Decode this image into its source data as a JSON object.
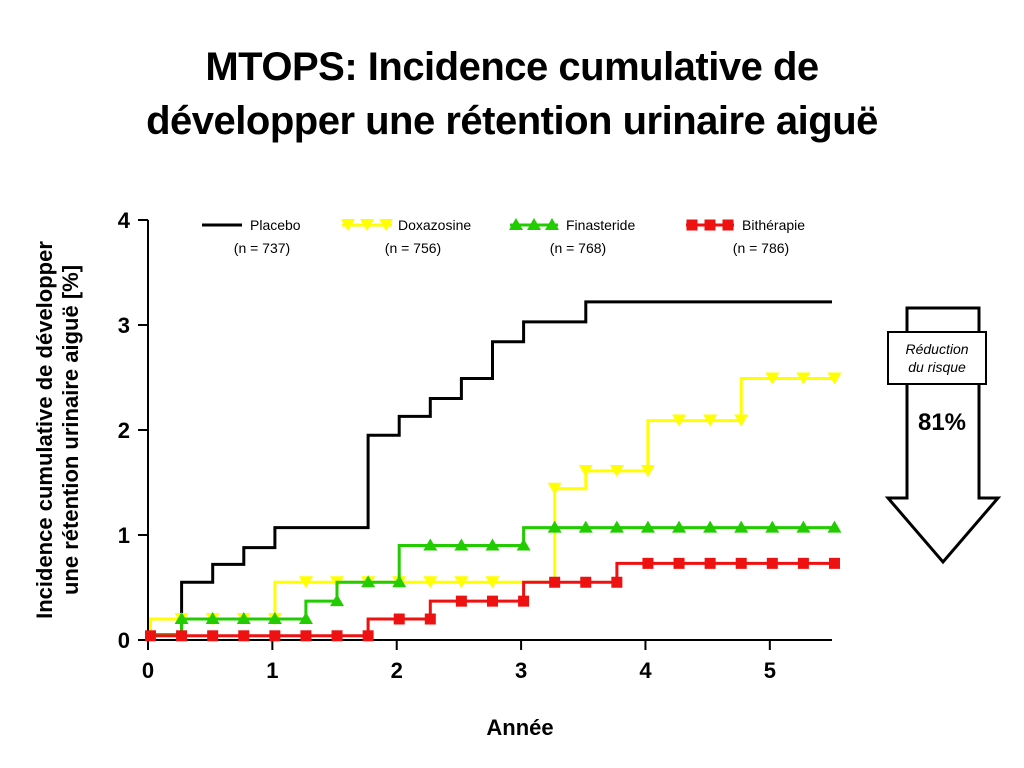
{
  "title": {
    "line1": "MTOPS: Incidence cumulative  de",
    "line2": "développer une rétention urinaire aiguë"
  },
  "callout": {
    "label_line1": "Réduction",
    "label_line2": "du risque",
    "value": "81%"
  },
  "chart_data": {
    "type": "line",
    "step": true,
    "xlabel": "Année",
    "ylabel_line1": "Incidence cumulative de développer",
    "ylabel_line2": "une rétention urinaire aiguë [%]",
    "xlim": [
      0,
      5.5
    ],
    "ylim": [
      0,
      4
    ],
    "xticks": [
      "0",
      "1",
      "2",
      "3",
      "4",
      "5"
    ],
    "yticks": [
      "0",
      "1",
      "2",
      "3",
      "4"
    ],
    "legend_position": "top",
    "series": [
      {
        "name": "Placebo",
        "n_label": "(n = 737)",
        "color": "#000000",
        "marker": "none",
        "points": [
          [
            0,
            0.05
          ],
          [
            0.27,
            0.05
          ],
          [
            0.27,
            0.55
          ],
          [
            0.52,
            0.55
          ],
          [
            0.52,
            0.72
          ],
          [
            0.77,
            0.72
          ],
          [
            0.77,
            0.88
          ],
          [
            1.02,
            0.88
          ],
          [
            1.02,
            1.07
          ],
          [
            1.77,
            1.07
          ],
          [
            1.77,
            1.95
          ],
          [
            2.02,
            1.95
          ],
          [
            2.02,
            2.13
          ],
          [
            2.27,
            2.13
          ],
          [
            2.27,
            2.3
          ],
          [
            2.52,
            2.3
          ],
          [
            2.52,
            2.49
          ],
          [
            2.77,
            2.49
          ],
          [
            2.77,
            2.84
          ],
          [
            3.02,
            2.84
          ],
          [
            3.02,
            3.03
          ],
          [
            3.52,
            3.03
          ],
          [
            3.52,
            3.22
          ],
          [
            5.5,
            3.22
          ]
        ],
        "markers": []
      },
      {
        "name": "Doxazosine",
        "n_label": "(n = 756)",
        "color": "#ffff00",
        "marker": "triangle-down",
        "points": [
          [
            0,
            0.05
          ],
          [
            0.02,
            0.05
          ],
          [
            0.02,
            0.2
          ],
          [
            1.02,
            0.2
          ],
          [
            1.02,
            0.55
          ],
          [
            2.77,
            0.55
          ],
          [
            2.77,
            0.55
          ],
          [
            3.27,
            0.55
          ],
          [
            3.27,
            1.44
          ],
          [
            3.52,
            1.44
          ],
          [
            3.52,
            1.61
          ],
          [
            4.02,
            1.61
          ],
          [
            4.02,
            2.09
          ],
          [
            4.77,
            2.09
          ],
          [
            4.77,
            2.49
          ],
          [
            5.55,
            2.49
          ]
        ],
        "markers": [
          [
            0.27,
            0.2
          ],
          [
            0.52,
            0.2
          ],
          [
            0.77,
            0.2
          ],
          [
            1.02,
            0.2
          ],
          [
            1.27,
            0.55
          ],
          [
            1.52,
            0.55
          ],
          [
            1.77,
            0.55
          ],
          [
            2.02,
            0.55
          ],
          [
            2.27,
            0.55
          ],
          [
            2.52,
            0.55
          ],
          [
            2.77,
            0.55
          ],
          [
            3.27,
            1.44
          ],
          [
            3.52,
            1.61
          ],
          [
            3.77,
            1.61
          ],
          [
            4.02,
            1.61
          ],
          [
            4.27,
            2.09
          ],
          [
            4.52,
            2.09
          ],
          [
            4.77,
            2.09
          ],
          [
            5.02,
            2.49
          ],
          [
            5.27,
            2.49
          ],
          [
            5.52,
            2.49
          ]
        ]
      },
      {
        "name": "Finasteride",
        "n_label": "(n = 768)",
        "color": "#22cc00",
        "marker": "triangle-up",
        "points": [
          [
            0,
            0.05
          ],
          [
            0.27,
            0.05
          ],
          [
            0.27,
            0.2
          ],
          [
            1.27,
            0.2
          ],
          [
            1.27,
            0.37
          ],
          [
            1.52,
            0.37
          ],
          [
            1.52,
            0.55
          ],
          [
            2.02,
            0.55
          ],
          [
            2.02,
            0.9
          ],
          [
            3.02,
            0.9
          ],
          [
            3.02,
            1.07
          ],
          [
            5.55,
            1.07
          ]
        ],
        "markers": [
          [
            0.27,
            0.2
          ],
          [
            0.52,
            0.2
          ],
          [
            0.77,
            0.2
          ],
          [
            1.02,
            0.2
          ],
          [
            1.27,
            0.2
          ],
          [
            1.52,
            0.37
          ],
          [
            1.77,
            0.55
          ],
          [
            2.02,
            0.55
          ],
          [
            2.27,
            0.9
          ],
          [
            2.52,
            0.9
          ],
          [
            2.77,
            0.9
          ],
          [
            3.02,
            0.9
          ],
          [
            3.27,
            1.07
          ],
          [
            3.52,
            1.07
          ],
          [
            3.77,
            1.07
          ],
          [
            4.02,
            1.07
          ],
          [
            4.27,
            1.07
          ],
          [
            4.52,
            1.07
          ],
          [
            4.77,
            1.07
          ],
          [
            5.02,
            1.07
          ],
          [
            5.27,
            1.07
          ],
          [
            5.52,
            1.07
          ]
        ]
      },
      {
        "name": "Bithérapie",
        "n_label": "(n = 786)",
        "color": "#ee1111",
        "marker": "square",
        "points": [
          [
            0,
            0.04
          ],
          [
            1.77,
            0.04
          ],
          [
            1.77,
            0.2
          ],
          [
            2.27,
            0.2
          ],
          [
            2.27,
            0.37
          ],
          [
            3.02,
            0.37
          ],
          [
            3.02,
            0.55
          ],
          [
            3.77,
            0.55
          ],
          [
            3.77,
            0.73
          ],
          [
            5.55,
            0.73
          ]
        ],
        "markers": [
          [
            0.02,
            0.04
          ],
          [
            0.27,
            0.04
          ],
          [
            0.52,
            0.04
          ],
          [
            0.77,
            0.04
          ],
          [
            1.02,
            0.04
          ],
          [
            1.27,
            0.04
          ],
          [
            1.52,
            0.04
          ],
          [
            1.77,
            0.04
          ],
          [
            2.02,
            0.2
          ],
          [
            2.27,
            0.2
          ],
          [
            2.52,
            0.37
          ],
          [
            2.77,
            0.37
          ],
          [
            3.02,
            0.37
          ],
          [
            3.27,
            0.55
          ],
          [
            3.52,
            0.55
          ],
          [
            3.77,
            0.55
          ],
          [
            4.02,
            0.73
          ],
          [
            4.27,
            0.73
          ],
          [
            4.52,
            0.73
          ],
          [
            4.77,
            0.73
          ],
          [
            5.02,
            0.73
          ],
          [
            5.27,
            0.73
          ],
          [
            5.52,
            0.73
          ]
        ]
      }
    ]
  }
}
